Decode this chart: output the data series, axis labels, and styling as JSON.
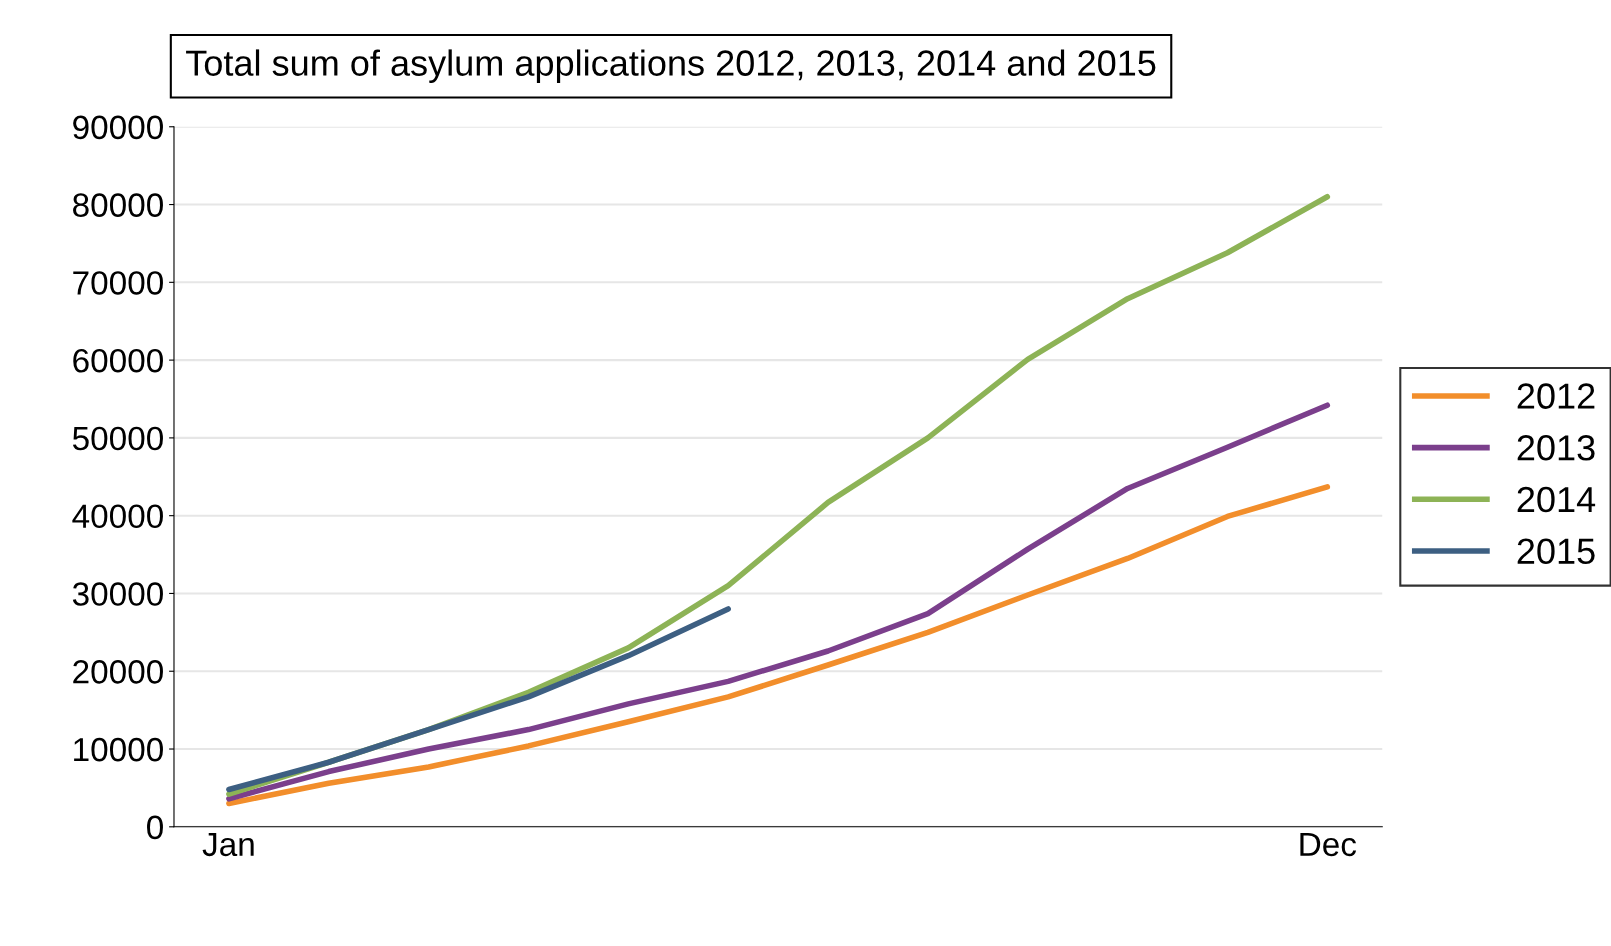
{
  "chart_data": {
    "type": "line",
    "title": "Total sum of asylum applications 2012, 2013, 2014 and 2015",
    "categories": [
      "Jan",
      null,
      null,
      null,
      null,
      null,
      null,
      null,
      null,
      null,
      null,
      "Dec"
    ],
    "series": [
      {
        "name": "2012",
        "color": "#f28e2b",
        "values": [
          3000,
          5600,
          7700,
          10400,
          13500,
          16700,
          20800,
          25000,
          29800,
          34500,
          39900,
          43700
        ]
      },
      {
        "name": "2013",
        "color": "#7b3f8c",
        "values": [
          3600,
          7100,
          10000,
          12500,
          15800,
          18700,
          22600,
          27400,
          35700,
          43500,
          48800,
          54200
        ]
      },
      {
        "name": "2014",
        "color": "#8db356",
        "values": [
          4200,
          8300,
          12500,
          17300,
          23000,
          31000,
          41700,
          50000,
          60100,
          67900,
          73800,
          81000
        ]
      },
      {
        "name": "2015",
        "color": "#3d5f82",
        "values": [
          4800,
          8300,
          12500,
          16700,
          22000,
          28000,
          null,
          null,
          null,
          null,
          null,
          null
        ]
      }
    ],
    "ylim": [
      0,
      90000
    ],
    "yticks": [
      0,
      10000,
      20000,
      30000,
      40000,
      50000,
      60000,
      70000,
      80000,
      90000
    ],
    "grid": "y",
    "legend": "right",
    "marker": "none",
    "line_style": "solid"
  }
}
